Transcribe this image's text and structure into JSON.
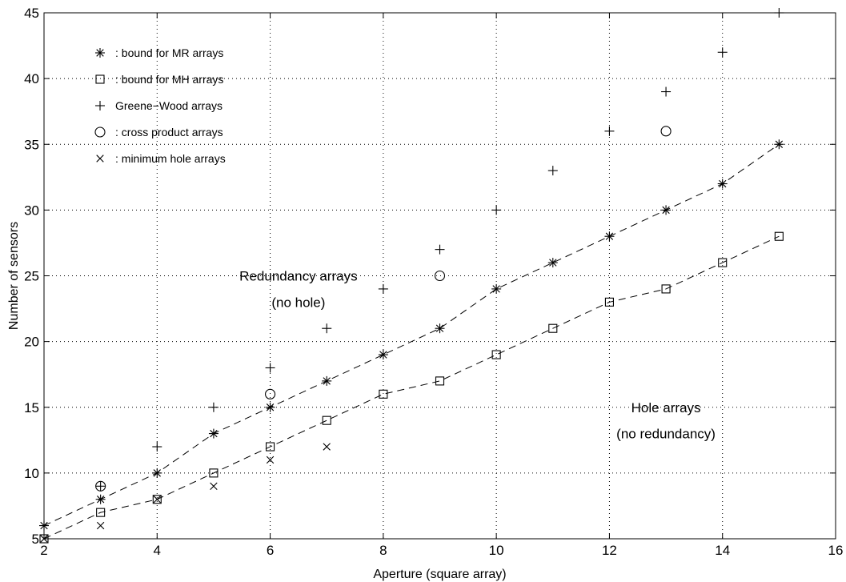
{
  "chart_data": {
    "type": "scatter",
    "xlabel": "Aperture (square array)",
    "ylabel": "Number of sensors",
    "xlim": [
      2,
      16
    ],
    "ylim": [
      5,
      45
    ],
    "xticks": [
      2,
      4,
      6,
      8,
      10,
      12,
      14,
      16
    ],
    "yticks": [
      5,
      10,
      15,
      20,
      25,
      30,
      35,
      40,
      45
    ],
    "grid": true,
    "legend_position": "top-left",
    "series": [
      {
        "name": ": bound for MR arrays",
        "marker": "asterisk",
        "line": "dashed",
        "x": [
          2,
          3,
          4,
          5,
          6,
          7,
          8,
          9,
          10,
          11,
          12,
          13,
          14,
          15
        ],
        "y": [
          6,
          8,
          10,
          13,
          15,
          17,
          19,
          21,
          24,
          26,
          28,
          30,
          32,
          35
        ]
      },
      {
        "name": ": bound for MH arrays",
        "marker": "square",
        "line": "dashed",
        "x": [
          2,
          3,
          4,
          5,
          6,
          7,
          8,
          9,
          10,
          11,
          12,
          13,
          14,
          15
        ],
        "y": [
          5,
          7,
          8,
          10,
          12,
          14,
          16,
          17,
          19,
          21,
          23,
          24,
          26,
          28
        ]
      },
      {
        "name": "Greene−Wood arrays",
        "marker": "plus",
        "line": "none",
        "x": [
          3,
          4,
          5,
          6,
          7,
          8,
          9,
          10,
          11,
          12,
          13,
          14,
          15
        ],
        "y": [
          9,
          12,
          15,
          18,
          21,
          24,
          27,
          30,
          33,
          36,
          39,
          42,
          45
        ]
      },
      {
        "name": ": cross product arrays",
        "marker": "circle",
        "line": "none",
        "x": [
          3,
          6,
          9,
          13
        ],
        "y": [
          9,
          16,
          25,
          36
        ]
      },
      {
        "name": ": minimum hole arrays",
        "marker": "x",
        "line": "none",
        "x": [
          2,
          3,
          4,
          5,
          6,
          7
        ],
        "y": [
          5,
          6,
          8,
          9,
          11,
          12
        ]
      }
    ],
    "annotations": [
      {
        "text": "Redundancy arrays",
        "x": 6.5,
        "y": 25
      },
      {
        "text": "(no hole)",
        "x": 6.5,
        "y": 23
      },
      {
        "text": "Hole arrays",
        "x": 13,
        "y": 15
      },
      {
        "text": "(no redundancy)",
        "x": 13,
        "y": 13
      }
    ]
  }
}
